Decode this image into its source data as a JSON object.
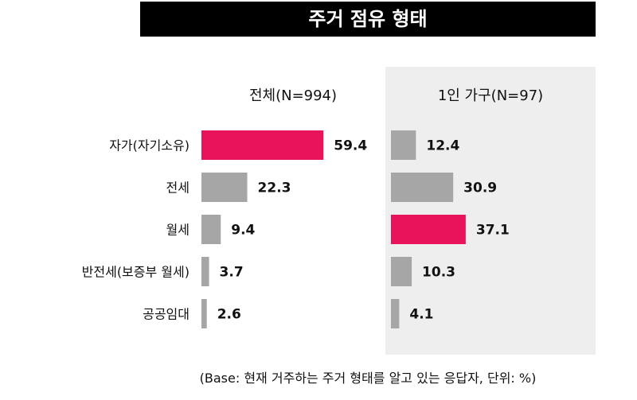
{
  "title": "주거 점유 형태",
  "footnote": "(Base: 현재 거주하는 주거 형태를 알고 있는 응답자, 단위: %)",
  "colors": {
    "highlight": "#e8135a",
    "bar": "#a6a6a6",
    "title_bg": "#000000",
    "panel_bg": "#eeeeee"
  },
  "chart_data": {
    "type": "bar",
    "orientation": "horizontal",
    "categories": [
      "자가(자기소유)",
      "전세",
      "월세",
      "반전세(보증부 월세)",
      "공공임대"
    ],
    "series": [
      {
        "name": "전체(N=994)",
        "values": [
          59.4,
          22.3,
          9.4,
          3.7,
          2.6
        ],
        "labels": [
          "59.4",
          "22.3",
          "9.4",
          "3.7",
          "2.6"
        ],
        "highlight_index": 0
      },
      {
        "name": "1인 가구(N=97)",
        "values": [
          12.4,
          30.9,
          37.1,
          10.3,
          4.1
        ],
        "labels": [
          "12.4",
          "30.9",
          "37.1",
          "10.3",
          "4.1"
        ],
        "highlight_index": 2
      }
    ],
    "unit": "%",
    "grid": false
  }
}
